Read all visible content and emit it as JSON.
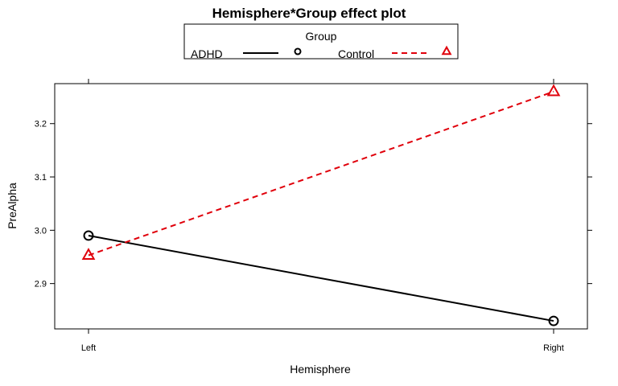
{
  "chart_data": {
    "type": "line",
    "title": "Hemisphere*Group effect plot",
    "xlabel": "Hemisphere",
    "ylabel": "PreAlpha",
    "categories": [
      "Left",
      "Right"
    ],
    "yticks": [
      "2.9",
      "3.0",
      "3.1",
      "3.2"
    ],
    "ylim": [
      2.815,
      3.275
    ],
    "legend": {
      "title": "Group",
      "position": "top"
    },
    "series": [
      {
        "name": "ADHD",
        "values": [
          2.99,
          2.83
        ],
        "color": "#000000",
        "line_style": "solid",
        "marker": "circle"
      },
      {
        "name": "Control",
        "values": [
          2.953,
          3.26
        ],
        "color": "#e0000b",
        "line_style": "dashed",
        "marker": "triangle"
      }
    ]
  }
}
